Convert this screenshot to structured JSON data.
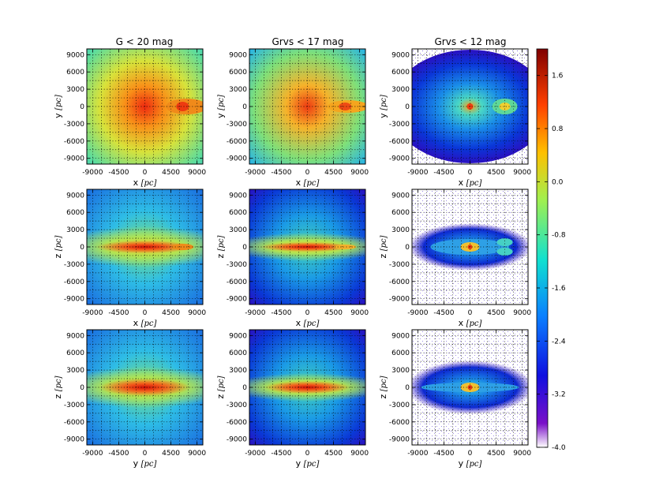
{
  "chart_data": {
    "type": "heatmap",
    "layout": "3x3 grid of density maps",
    "column_titles": [
      "G < 20 mag",
      "Grvs < 17 mag",
      "Grvs < 12 mag"
    ],
    "rows": [
      {
        "xlabel_var": "x",
        "ylabel_var": "y"
      },
      {
        "xlabel_var": "x",
        "ylabel_var": "z"
      },
      {
        "xlabel_var": "y",
        "ylabel_var": "z"
      }
    ],
    "unit_label": "pc",
    "x_ticks": [
      "-9000",
      "-4500",
      "0",
      "4500",
      "9000"
    ],
    "y_ticks": [
      "9000",
      "6000",
      "3000",
      "0",
      "-3000",
      "-6000",
      "-9000"
    ],
    "axis_range": [
      -10000,
      10000
    ],
    "grid": "dotted",
    "colorbar": {
      "range": [
        -4.0,
        2.0
      ],
      "ticks": [
        "1.6",
        "0.8",
        "0.0",
        "-0.8",
        "-1.6",
        "-2.4",
        "-3.2",
        "-4.0"
      ],
      "colormap": "jet"
    }
  }
}
